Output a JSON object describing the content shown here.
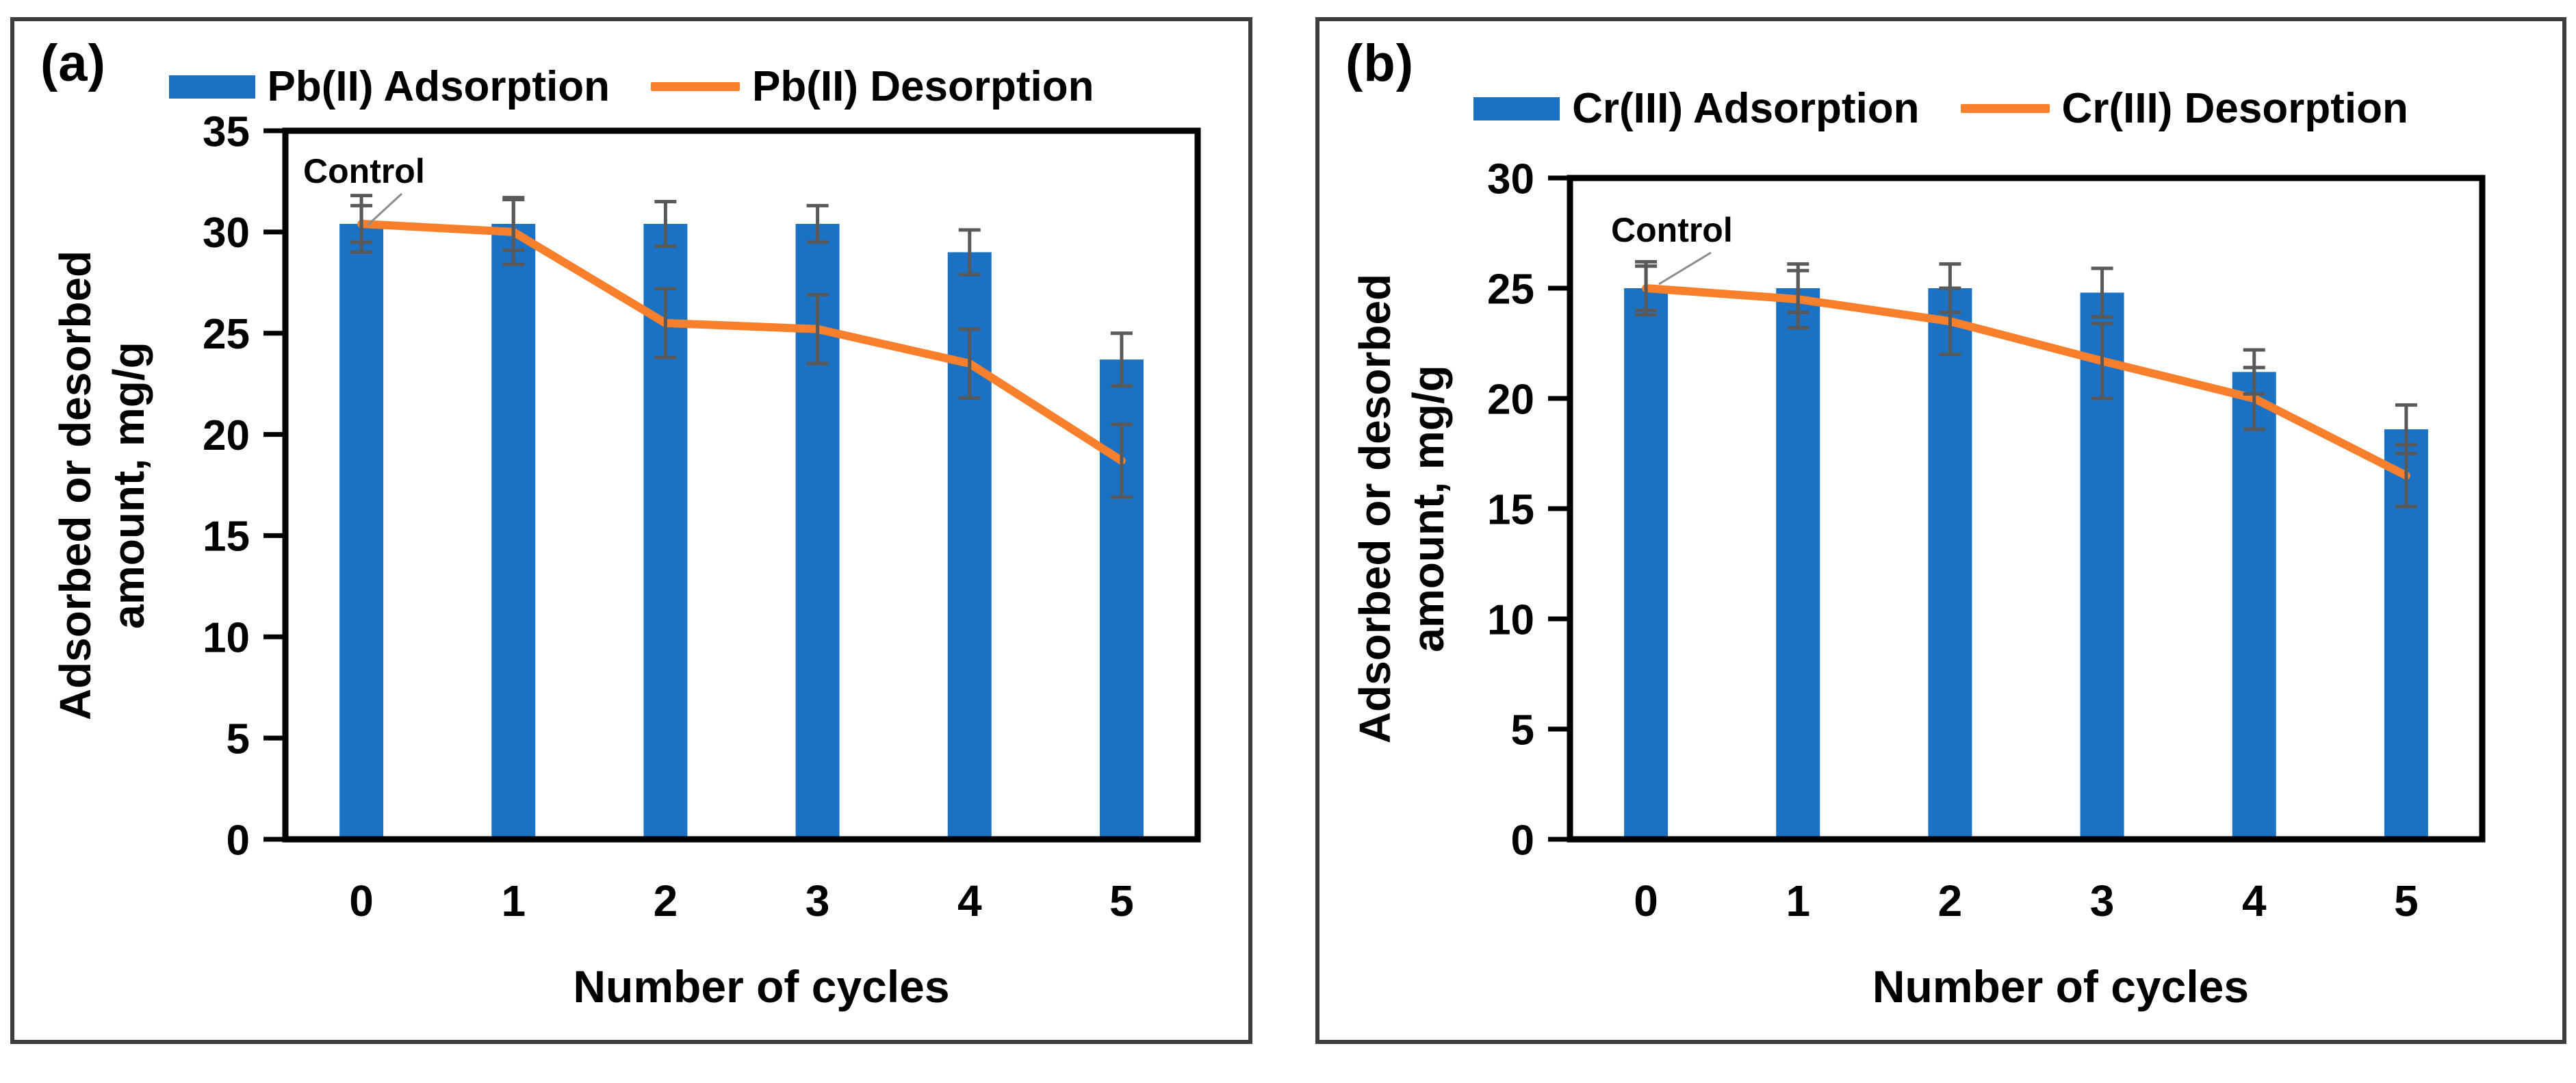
{
  "colors": {
    "bar_fill": "#1b72c4",
    "line_stroke": "#f87f2c",
    "error_bar": "#595959",
    "plot_border": "#000000",
    "panel_border": "#3e3e3e",
    "annotation_leader": "#8c8c8c",
    "text": "#000000"
  },
  "panels": [
    {
      "label": "(a)",
      "legend": [
        {
          "label": "Pb(II) Adsorption",
          "type": "bar"
        },
        {
          "label": "Pb(II) Desorption",
          "type": "line"
        }
      ],
      "ylabel_line1": "Adsorbed or desorbed",
      "ylabel_line2": "amount, mg/g",
      "xlabel": "Number of cycles",
      "annotation": "Control",
      "chart_data": {
        "type": "bar",
        "title": "",
        "categories": [
          "0",
          "1",
          "2",
          "3",
          "4",
          "5"
        ],
        "series": [
          {
            "name": "Pb(II) Adsorption",
            "type": "bar",
            "values": [
              30.4,
              30.4,
              30.4,
              30.4,
              29.0,
              23.7
            ],
            "errors": [
              1.4,
              1.3,
              1.1,
              0.9,
              1.1,
              1.3
            ]
          },
          {
            "name": "Pb(II) Desorption",
            "type": "line",
            "values": [
              30.4,
              30.0,
              25.5,
              25.2,
              23.5,
              18.7
            ],
            "errors": [
              0.9,
              1.6,
              1.7,
              1.7,
              1.7,
              1.8
            ]
          }
        ],
        "xlabel": "Number of cycles",
        "ylabel": "Adsorbed or desorbed amount, mg/g",
        "ylim": [
          0,
          35
        ],
        "ytick_step": 5,
        "grid": false,
        "legend_position": "top"
      }
    },
    {
      "label": "(b)",
      "legend": [
        {
          "label": "Cr(III) Adsorption",
          "type": "bar"
        },
        {
          "label": "Cr(III) Desorption",
          "type": "line"
        }
      ],
      "ylabel_line1": "Adsorbed or desorbed",
      "ylabel_line2": "amount, mg/g",
      "xlabel": "Number of cycles",
      "annotation": "Control",
      "chart_data": {
        "type": "bar",
        "title": "",
        "categories": [
          "0",
          "1",
          "2",
          "3",
          "4",
          "5"
        ],
        "series": [
          {
            "name": "Cr(III) Adsorption",
            "type": "bar",
            "values": [
              25.0,
              25.0,
              25.0,
              24.8,
              21.2,
              18.6
            ],
            "errors": [
              1.2,
              1.1,
              1.1,
              1.1,
              1.0,
              1.1
            ]
          },
          {
            "name": "Cr(III) Desorption",
            "type": "line",
            "values": [
              25.0,
              24.5,
              23.5,
              21.7,
              20.0,
              16.5
            ],
            "errors": [
              1.0,
              1.3,
              1.5,
              1.7,
              1.4,
              1.4
            ]
          }
        ],
        "xlabel": "Number of cycles",
        "ylabel": "Adsorbed or desorbed amount, mg/g",
        "ylim": [
          0,
          30
        ],
        "ytick_step": 5,
        "grid": false,
        "legend_position": "top"
      }
    }
  ]
}
